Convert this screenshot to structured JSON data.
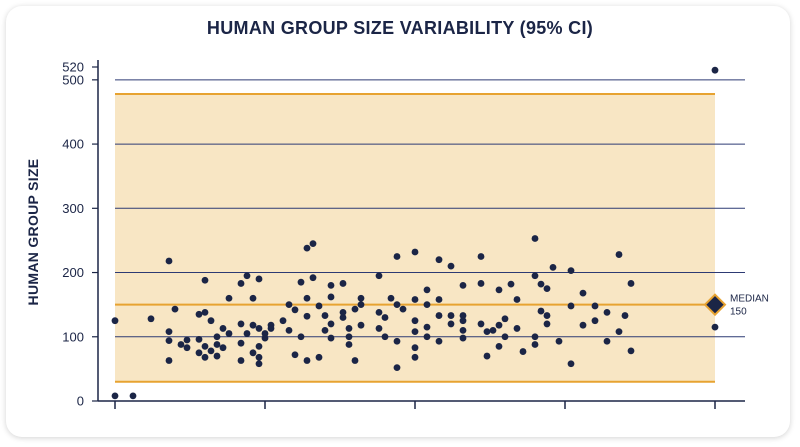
{
  "chart_data": {
    "type": "scatter",
    "title": "HUMAN GROUP SIZE VARIABILITY (95% CI)",
    "ylabel": "HUMAN GROUP SIZE",
    "xlabel": "",
    "ylim": [
      0,
      520
    ],
    "xlim": [
      0,
      100
    ],
    "yticks": [
      0,
      100,
      200,
      300,
      400,
      500,
      520
    ],
    "xticks": [
      0,
      25,
      50,
      75,
      100
    ],
    "grid": true,
    "ci_band": {
      "lower": 30,
      "upper": 478
    },
    "median": {
      "value": 150,
      "label_line1": "MEDIAN",
      "label_line2": "150"
    },
    "colors": {
      "points": "#1b2546",
      "band_fill": "#f8e6c4",
      "band_lines": "#e7a331",
      "grid": "#2d3a73",
      "text": "#1b2546",
      "median_marker": "#1b2546",
      "median_marker_border": "#e7a331"
    },
    "series": [
      {
        "points": [
          {
            "x": 0,
            "y": 125
          },
          {
            "x": 0,
            "y": 8
          },
          {
            "x": 3,
            "y": 8
          },
          {
            "x": 6,
            "y": 128
          },
          {
            "x": 9,
            "y": 218
          },
          {
            "x": 9,
            "y": 108
          },
          {
            "x": 9,
            "y": 94
          },
          {
            "x": 9,
            "y": 63
          },
          {
            "x": 10,
            "y": 143
          },
          {
            "x": 11,
            "y": 88
          },
          {
            "x": 12,
            "y": 95
          },
          {
            "x": 12,
            "y": 83
          },
          {
            "x": 14,
            "y": 75
          },
          {
            "x": 14,
            "y": 96
          },
          {
            "x": 14,
            "y": 135
          },
          {
            "x": 15,
            "y": 85
          },
          {
            "x": 15,
            "y": 68
          },
          {
            "x": 15,
            "y": 188
          },
          {
            "x": 15,
            "y": 138
          },
          {
            "x": 16,
            "y": 125
          },
          {
            "x": 16,
            "y": 78
          },
          {
            "x": 17,
            "y": 100
          },
          {
            "x": 17,
            "y": 70
          },
          {
            "x": 17,
            "y": 88
          },
          {
            "x": 18,
            "y": 113
          },
          {
            "x": 18,
            "y": 83
          },
          {
            "x": 19,
            "y": 160
          },
          {
            "x": 19,
            "y": 105
          },
          {
            "x": 21,
            "y": 183
          },
          {
            "x": 21,
            "y": 120
          },
          {
            "x": 21,
            "y": 90
          },
          {
            "x": 21,
            "y": 63
          },
          {
            "x": 22,
            "y": 105
          },
          {
            "x": 22,
            "y": 195
          },
          {
            "x": 23,
            "y": 118
          },
          {
            "x": 23,
            "y": 160
          },
          {
            "x": 23,
            "y": 75
          },
          {
            "x": 24,
            "y": 190
          },
          {
            "x": 24,
            "y": 113
          },
          {
            "x": 24,
            "y": 85
          },
          {
            "x": 24,
            "y": 68
          },
          {
            "x": 24,
            "y": 58
          },
          {
            "x": 25,
            "y": 105
          },
          {
            "x": 25,
            "y": 98
          },
          {
            "x": 26,
            "y": 118
          },
          {
            "x": 26,
            "y": 113
          },
          {
            "x": 28,
            "y": 125
          },
          {
            "x": 29,
            "y": 150
          },
          {
            "x": 29,
            "y": 110
          },
          {
            "x": 30,
            "y": 142
          },
          {
            "x": 31,
            "y": 185
          },
          {
            "x": 30,
            "y": 72
          },
          {
            "x": 31,
            "y": 100
          },
          {
            "x": 32,
            "y": 160
          },
          {
            "x": 32,
            "y": 132
          },
          {
            "x": 32,
            "y": 238
          },
          {
            "x": 32,
            "y": 63
          },
          {
            "x": 33,
            "y": 192
          },
          {
            "x": 33,
            "y": 245
          },
          {
            "x": 34,
            "y": 148
          },
          {
            "x": 34,
            "y": 68
          },
          {
            "x": 35,
            "y": 110
          },
          {
            "x": 35,
            "y": 133
          },
          {
            "x": 36,
            "y": 180
          },
          {
            "x": 36,
            "y": 162
          },
          {
            "x": 36,
            "y": 120
          },
          {
            "x": 36,
            "y": 98
          },
          {
            "x": 38,
            "y": 130
          },
          {
            "x": 38,
            "y": 183
          },
          {
            "x": 38,
            "y": 138
          },
          {
            "x": 39,
            "y": 100
          },
          {
            "x": 39,
            "y": 113
          },
          {
            "x": 39,
            "y": 88
          },
          {
            "x": 40,
            "y": 63
          },
          {
            "x": 40,
            "y": 143
          },
          {
            "x": 41,
            "y": 150
          },
          {
            "x": 41,
            "y": 160
          },
          {
            "x": 41,
            "y": 118
          },
          {
            "x": 44,
            "y": 195
          },
          {
            "x": 44,
            "y": 138
          },
          {
            "x": 44,
            "y": 113
          },
          {
            "x": 45,
            "y": 100
          },
          {
            "x": 45,
            "y": 130
          },
          {
            "x": 46,
            "y": 160
          },
          {
            "x": 47,
            "y": 225
          },
          {
            "x": 47,
            "y": 150
          },
          {
            "x": 47,
            "y": 93
          },
          {
            "x": 47,
            "y": 52
          },
          {
            "x": 48,
            "y": 143
          },
          {
            "x": 50,
            "y": 232
          },
          {
            "x": 50,
            "y": 158
          },
          {
            "x": 50,
            "y": 125
          },
          {
            "x": 50,
            "y": 108
          },
          {
            "x": 50,
            "y": 83
          },
          {
            "x": 50,
            "y": 68
          },
          {
            "x": 52,
            "y": 173
          },
          {
            "x": 52,
            "y": 150
          },
          {
            "x": 52,
            "y": 115
          },
          {
            "x": 52,
            "y": 100
          },
          {
            "x": 54,
            "y": 220
          },
          {
            "x": 54,
            "y": 158
          },
          {
            "x": 54,
            "y": 133
          },
          {
            "x": 54,
            "y": 93
          },
          {
            "x": 56,
            "y": 210
          },
          {
            "x": 56,
            "y": 133
          },
          {
            "x": 56,
            "y": 120
          },
          {
            "x": 58,
            "y": 180
          },
          {
            "x": 58,
            "y": 133
          },
          {
            "x": 58,
            "y": 125
          },
          {
            "x": 58,
            "y": 110
          },
          {
            "x": 58,
            "y": 98
          },
          {
            "x": 61,
            "y": 225
          },
          {
            "x": 61,
            "y": 183
          },
          {
            "x": 61,
            "y": 120
          },
          {
            "x": 62,
            "y": 108
          },
          {
            "x": 62,
            "y": 70
          },
          {
            "x": 63,
            "y": 110
          },
          {
            "x": 64,
            "y": 173
          },
          {
            "x": 64,
            "y": 118
          },
          {
            "x": 64,
            "y": 85
          },
          {
            "x": 65,
            "y": 128
          },
          {
            "x": 65,
            "y": 100
          },
          {
            "x": 66,
            "y": 182
          },
          {
            "x": 67,
            "y": 113
          },
          {
            "x": 67,
            "y": 158
          },
          {
            "x": 68,
            "y": 77
          },
          {
            "x": 70,
            "y": 253
          },
          {
            "x": 70,
            "y": 195
          },
          {
            "x": 70,
            "y": 100
          },
          {
            "x": 70,
            "y": 88
          },
          {
            "x": 71,
            "y": 182
          },
          {
            "x": 71,
            "y": 140
          },
          {
            "x": 72,
            "y": 175
          },
          {
            "x": 72,
            "y": 133
          },
          {
            "x": 72,
            "y": 120
          },
          {
            "x": 73,
            "y": 208
          },
          {
            "x": 74,
            "y": 93
          },
          {
            "x": 76,
            "y": 203
          },
          {
            "x": 76,
            "y": 148
          },
          {
            "x": 76,
            "y": 58
          },
          {
            "x": 78,
            "y": 168
          },
          {
            "x": 78,
            "y": 118
          },
          {
            "x": 80,
            "y": 148
          },
          {
            "x": 80,
            "y": 125
          },
          {
            "x": 82,
            "y": 138
          },
          {
            "x": 82,
            "y": 93
          },
          {
            "x": 84,
            "y": 228
          },
          {
            "x": 84,
            "y": 108
          },
          {
            "x": 85,
            "y": 133
          },
          {
            "x": 86,
            "y": 183
          },
          {
            "x": 86,
            "y": 78
          },
          {
            "x": 100,
            "y": 115
          },
          {
            "x": 100,
            "y": 515
          }
        ]
      }
    ]
  }
}
